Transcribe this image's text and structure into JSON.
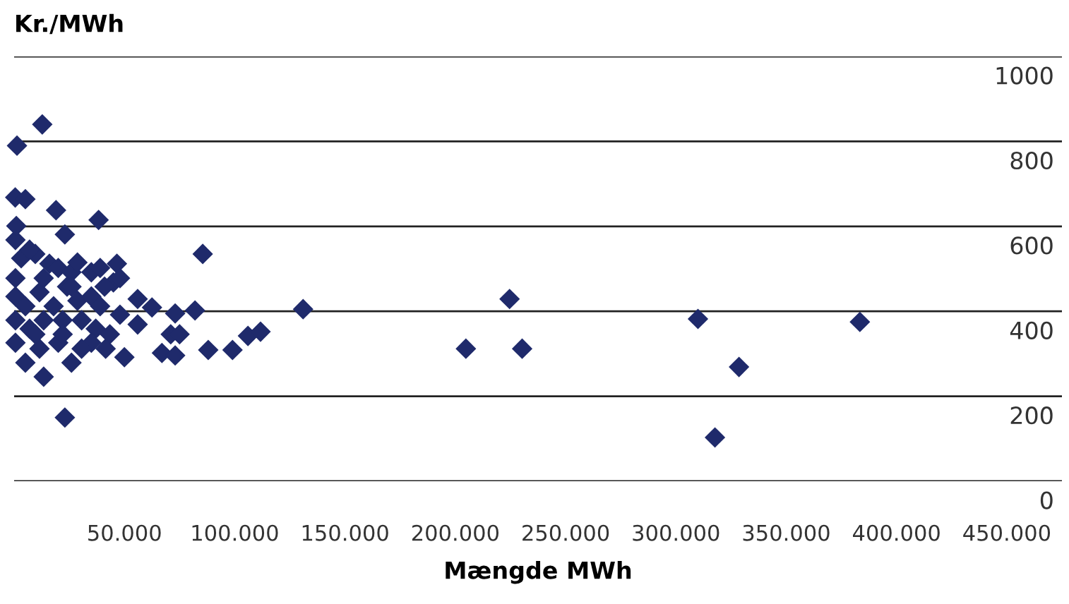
{
  "chart_data": {
    "type": "scatter",
    "ylabel": "Kr./MWh",
    "xlabel": "Mængde MWh",
    "xlim": [
      0,
      475000
    ],
    "ylim": [
      0,
      1000
    ],
    "xticks": [
      {
        "value": 50000,
        "label": "50.000"
      },
      {
        "value": 100000,
        "label": "100.000"
      },
      {
        "value": 150000,
        "label": "150.000"
      },
      {
        "value": 200000,
        "label": "200.000"
      },
      {
        "value": 250000,
        "label": "250.000"
      },
      {
        "value": 300000,
        "label": "300.000"
      },
      {
        "value": 350000,
        "label": "350.000"
      },
      {
        "value": 400000,
        "label": "400.000"
      },
      {
        "value": 450000,
        "label": "450.000"
      }
    ],
    "yticks": [
      0,
      200,
      400,
      600,
      800,
      1000
    ],
    "grid": "y",
    "marker": "diamond",
    "legend": false,
    "series": [
      {
        "color": "#1f2a6b",
        "x": [
          12760,
          1300,
          38300,
          23000,
          19000,
          500,
          5100,
          85500,
          131000,
          23000,
          224600,
          204800,
          230300,
          310000,
          328600,
          383400,
          317700,
          600,
          1000,
          9600,
          16000,
          20000,
          26000,
          35000,
          46600,
          45000,
          41000,
          56000,
          62500,
          73000,
          82000,
          56000,
          71000,
          75000,
          106000,
          111700,
          67000,
          73000,
          88000,
          99000,
          50000,
          26000,
          13400,
          5100,
          600,
          600,
          600,
          600,
          7000,
          13400,
          22000,
          30600,
          37000,
          43400,
          35000,
          20000,
          11500,
          17900,
          28700,
          35000,
          11500,
          5100,
          24000,
          13400,
          3200,
          7000,
          39000,
          48000,
          26000,
          39000,
          48000,
          22000,
          9600,
          30600,
          41500,
          28700
        ],
        "values": [
          840,
          790,
          615,
          581,
          638,
          668,
          664,
          535,
          405,
          150,
          429,
          312,
          312,
          382,
          269,
          375,
          103,
          568,
          601,
          535,
          512,
          502,
          492,
          492,
          512,
          468,
          458,
          429,
          409,
          395,
          402,
          369,
          346,
          346,
          342,
          352,
          302,
          296,
          309,
          309,
          292,
          279,
          246,
          279,
          326,
          379,
          435,
          478,
          359,
          379,
          379,
          379,
          359,
          346,
          326,
          326,
          312,
          412,
          425,
          435,
          445,
          412,
          458,
          478,
          525,
          545,
          502,
          478,
          458,
          412,
          392,
          346,
          346,
          312,
          312,
          515
        ]
      }
    ]
  }
}
